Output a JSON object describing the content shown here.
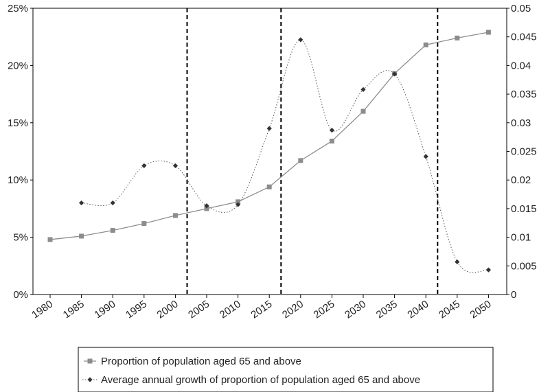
{
  "chart_data": {
    "type": "line",
    "categories": [
      "1980",
      "1985",
      "1990",
      "1995",
      "2000",
      "2005",
      "2010",
      "2015",
      "2020",
      "2025",
      "2030",
      "2035",
      "2040",
      "2045",
      "2050"
    ],
    "axes": {
      "y_left": {
        "range": [
          0,
          25
        ],
        "ticks": [
          0,
          5,
          10,
          15,
          20,
          25
        ],
        "tick_labels": [
          "0%",
          "5%",
          "10%",
          "15%",
          "20%",
          "25%"
        ]
      },
      "y_right": {
        "range": [
          0,
          0.05
        ],
        "ticks": [
          0,
          0.005,
          0.01,
          0.015,
          0.02,
          0.025,
          0.03,
          0.035,
          0.04,
          0.045,
          0.05
        ],
        "tick_labels": [
          "0",
          "0.005",
          "0.01",
          "0.015",
          "0.02",
          "0.025",
          "0.03",
          "0.035",
          "0.04",
          "0.045",
          "0.05"
        ]
      }
    },
    "series": [
      {
        "name": "Proportion of population aged 65 and above",
        "axis": "left",
        "marker": "square",
        "line_style": "solid",
        "color": "#8c8c8c",
        "values": [
          4.8,
          5.1,
          5.6,
          6.2,
          6.9,
          7.5,
          8.1,
          9.4,
          11.7,
          13.4,
          16.0,
          19.3,
          21.8,
          22.4,
          22.9
        ]
      },
      {
        "name": "Average annual growth of proportion of population aged 65 and above",
        "axis": "right",
        "marker": "diamond",
        "line_style": "dotted",
        "color": "#333333",
        "values": [
          null,
          0.016,
          0.016,
          0.0225,
          0.0225,
          0.0155,
          0.0157,
          0.029,
          0.0445,
          0.0287,
          0.0358,
          0.0385,
          0.0241,
          0.0057,
          0.0043
        ]
      }
    ],
    "vertical_reference_lines": [
      "2000",
      "2015",
      "2040"
    ],
    "grid": false,
    "legend_position": "bottom"
  }
}
